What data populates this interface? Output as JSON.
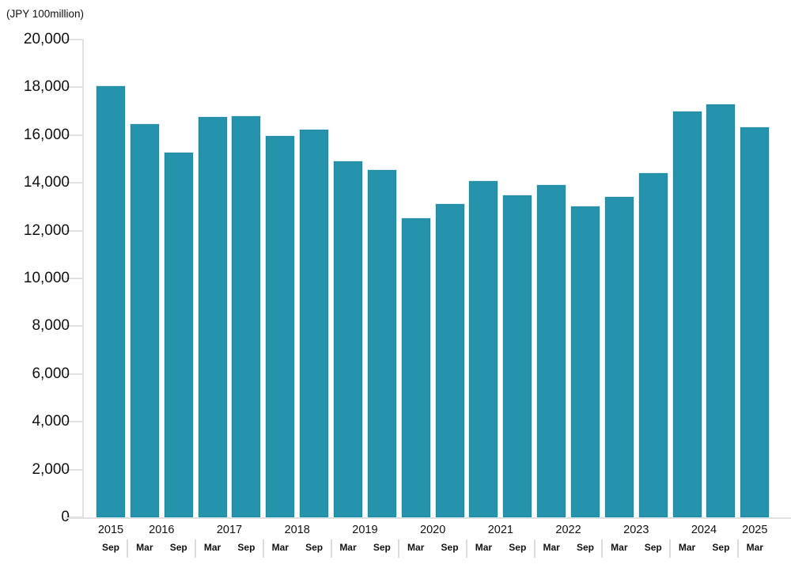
{
  "unit_label": "(JPY 100million)",
  "chart_data": {
    "type": "bar",
    "title": "(JPY 100million)",
    "xlabel": "",
    "ylabel": "(JPY 100million)",
    "ylim": [
      0,
      20000
    ],
    "ytick_interval": 2000,
    "yticks": [
      0,
      2000,
      4000,
      6000,
      8000,
      10000,
      12000,
      14000,
      16000,
      18000,
      20000
    ],
    "grid": false,
    "legend_position": "none",
    "bar_color": "#2593ab",
    "bar_edge_color": "#1f89a0",
    "axis_color": "#e0e0e0",
    "categories": [
      {
        "year": "2015",
        "month": "Sep"
      },
      {
        "year": "2016",
        "month": "Mar"
      },
      {
        "year": "2016",
        "month": "Sep"
      },
      {
        "year": "2017",
        "month": "Mar"
      },
      {
        "year": "2017",
        "month": "Sep"
      },
      {
        "year": "2018",
        "month": "Mar"
      },
      {
        "year": "2018",
        "month": "Sep"
      },
      {
        "year": "2019",
        "month": "Mar"
      },
      {
        "year": "2019",
        "month": "Sep"
      },
      {
        "year": "2020",
        "month": "Mar"
      },
      {
        "year": "2020",
        "month": "Sep"
      },
      {
        "year": "2021",
        "month": "Mar"
      },
      {
        "year": "2021",
        "month": "Sep"
      },
      {
        "year": "2022",
        "month": "Mar"
      },
      {
        "year": "2022",
        "month": "Sep"
      },
      {
        "year": "2023",
        "month": "Mar"
      },
      {
        "year": "2023",
        "month": "Sep"
      },
      {
        "year": "2024",
        "month": "Mar"
      },
      {
        "year": "2024",
        "month": "Sep"
      },
      {
        "year": "2025",
        "month": "Mar"
      }
    ],
    "values": [
      18040,
      16450,
      15260,
      16750,
      16800,
      15950,
      16220,
      14900,
      14530,
      12520,
      13100,
      14080,
      13480,
      13900,
      13000,
      13420,
      14400,
      16980,
      17280,
      16320
    ]
  }
}
